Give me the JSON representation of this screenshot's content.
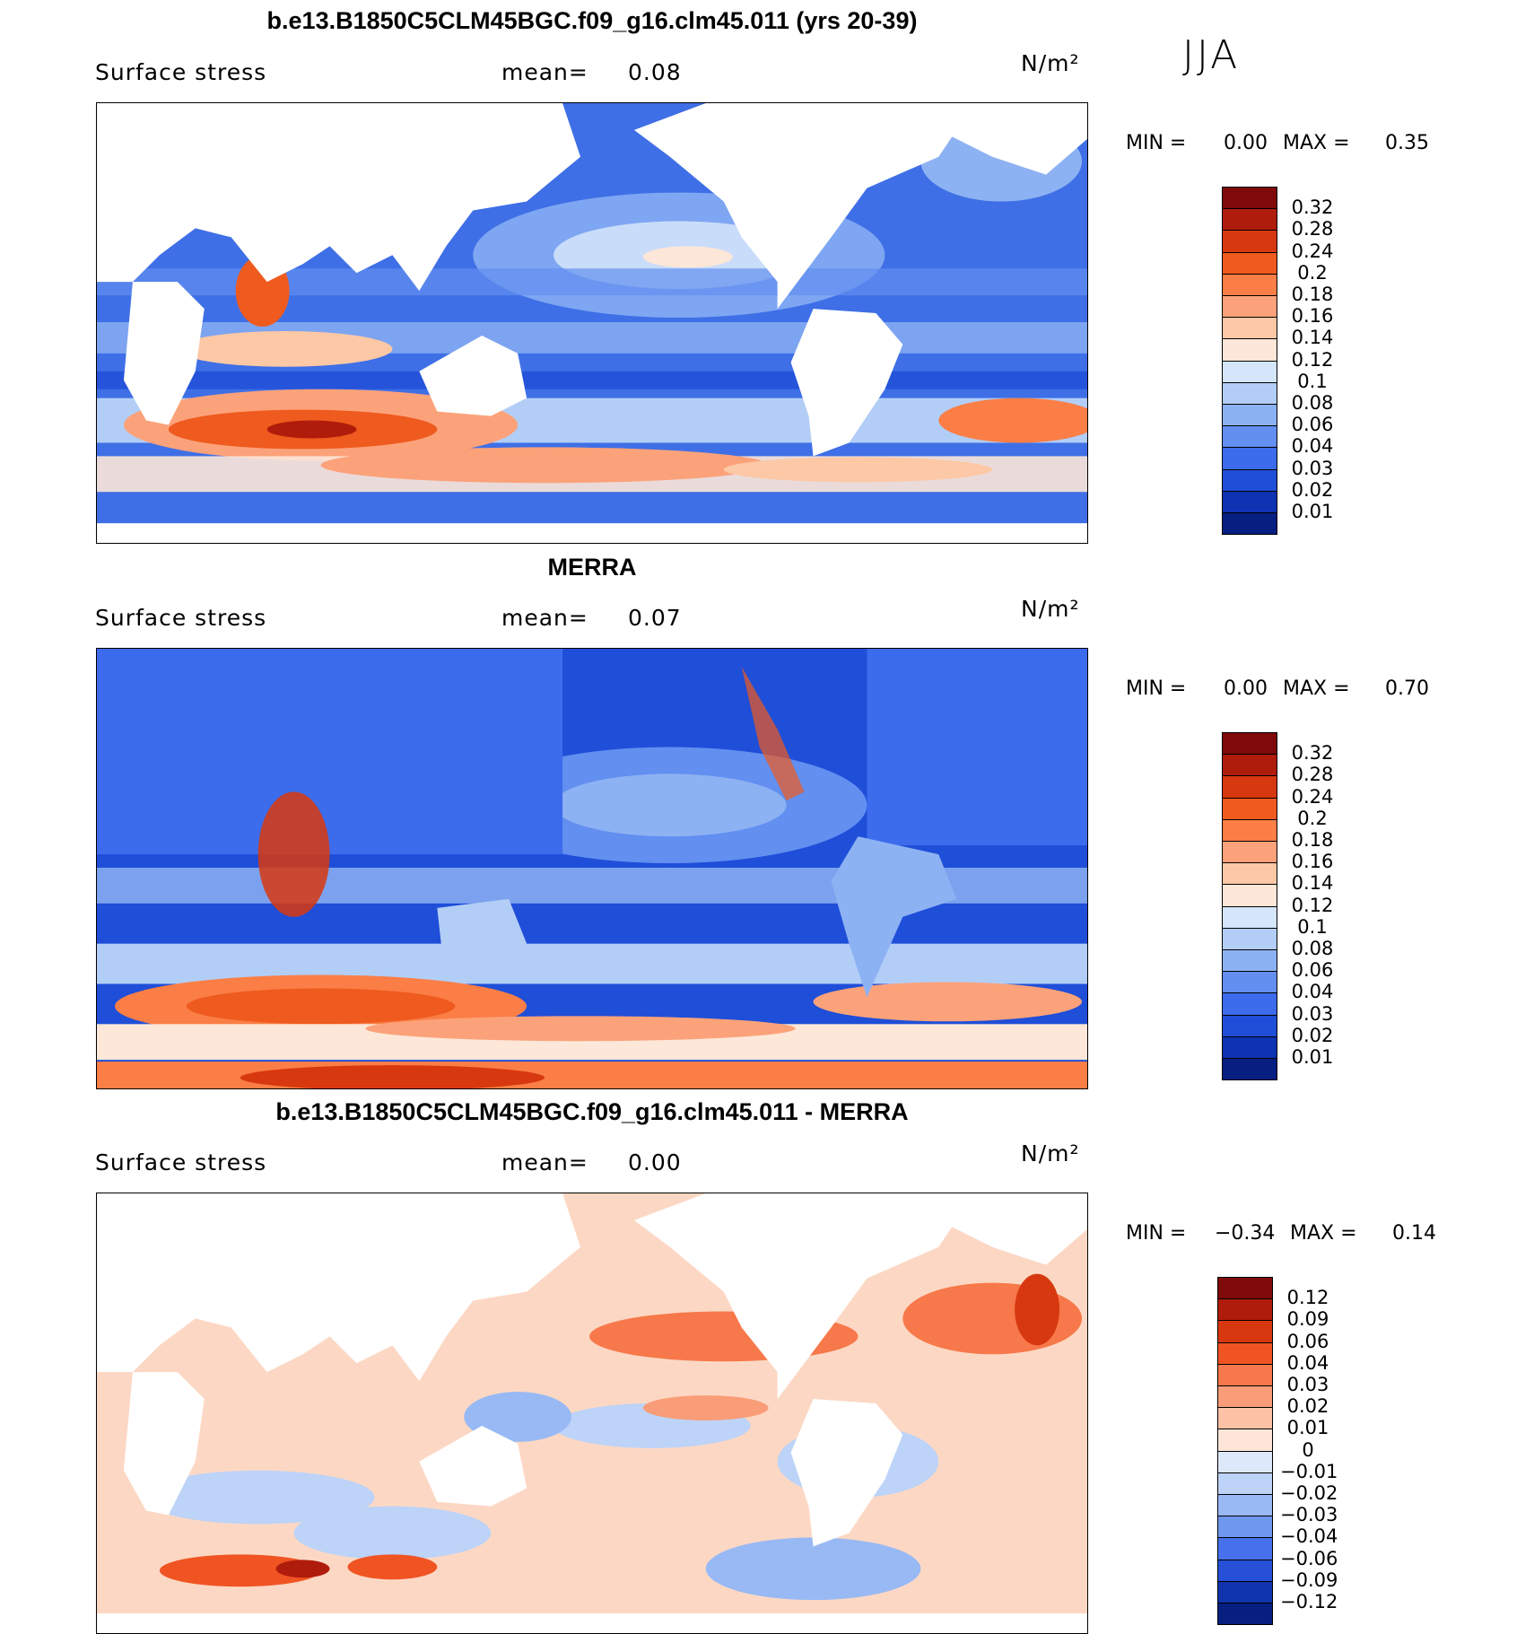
{
  "season": "JJA",
  "panels": [
    {
      "id": "model",
      "title": "b.e13.B1850C5CLM45BGC.f09_g16.clm45.011 (yrs 20-39)",
      "variable": "Surface stress",
      "mean_label": "mean=",
      "mean_value": "0.08",
      "units": "N/m²",
      "min_label": "MIN =",
      "min_value": "0.00",
      "max_label": "MAX =",
      "max_value": "0.35",
      "colorbar": {
        "ticks": [
          "0.32",
          "0.28",
          "0.24",
          "0.2",
          "0.18",
          "0.16",
          "0.14",
          "0.12",
          "0.1",
          "0.08",
          "0.06",
          "0.04",
          "0.03",
          "0.02",
          "0.01"
        ],
        "colors": [
          "#7f0a0a",
          "#b01c0c",
          "#d8380f",
          "#ef5a1e",
          "#fa7e45",
          "#fca27a",
          "#fdc8a6",
          "#fde7d8",
          "#d5e6fb",
          "#b2cef7",
          "#8db2f3",
          "#628ff0",
          "#3c6cec",
          "#1f4ed8",
          "#0d33b2",
          "#061f80"
        ]
      }
    },
    {
      "id": "obs",
      "title": "MERRA",
      "variable": "Surface stress",
      "mean_label": "mean=",
      "mean_value": "0.07",
      "units": "N/m²",
      "min_label": "MIN =",
      "min_value": "0.00",
      "max_label": "MAX =",
      "max_value": "0.70",
      "colorbar": {
        "ticks": [
          "0.32",
          "0.28",
          "0.24",
          "0.2",
          "0.18",
          "0.16",
          "0.14",
          "0.12",
          "0.1",
          "0.08",
          "0.06",
          "0.04",
          "0.03",
          "0.02",
          "0.01"
        ],
        "colors": [
          "#7f0a0a",
          "#b01c0c",
          "#d8380f",
          "#ef5a1e",
          "#fa7e45",
          "#fca27a",
          "#fdc8a6",
          "#fde7d8",
          "#d5e6fb",
          "#b2cef7",
          "#8db2f3",
          "#628ff0",
          "#3c6cec",
          "#1f4ed8",
          "#0d33b2",
          "#061f80"
        ]
      }
    },
    {
      "id": "diff",
      "title": "b.e13.B1850C5CLM45BGC.f09_g16.clm45.011 - MERRA",
      "variable": "Surface stress",
      "mean_label": "mean=",
      "mean_value": "0.00",
      "units": "N/m²",
      "min_label": "MIN =",
      "min_value": "−0.34",
      "max_label": "MAX =",
      "max_value": "0.14",
      "colorbar": {
        "ticks": [
          "0.12",
          "0.09",
          "0.06",
          "0.04",
          "0.03",
          "0.02",
          "0.01",
          "0",
          "−0.01",
          "−0.02",
          "−0.03",
          "−0.04",
          "−0.06",
          "−0.09",
          "−0.12"
        ],
        "colors": [
          "#7f0a0a",
          "#b01c0c",
          "#d8380f",
          "#f05423",
          "#f7784a",
          "#f99d78",
          "#fbc2a6",
          "#fde6d8",
          "#dde9fb",
          "#bdd3f8",
          "#98b9f4",
          "#6f97f0",
          "#4670ec",
          "#2550d7",
          "#0f34ad",
          "#061f80"
        ]
      }
    }
  ]
}
